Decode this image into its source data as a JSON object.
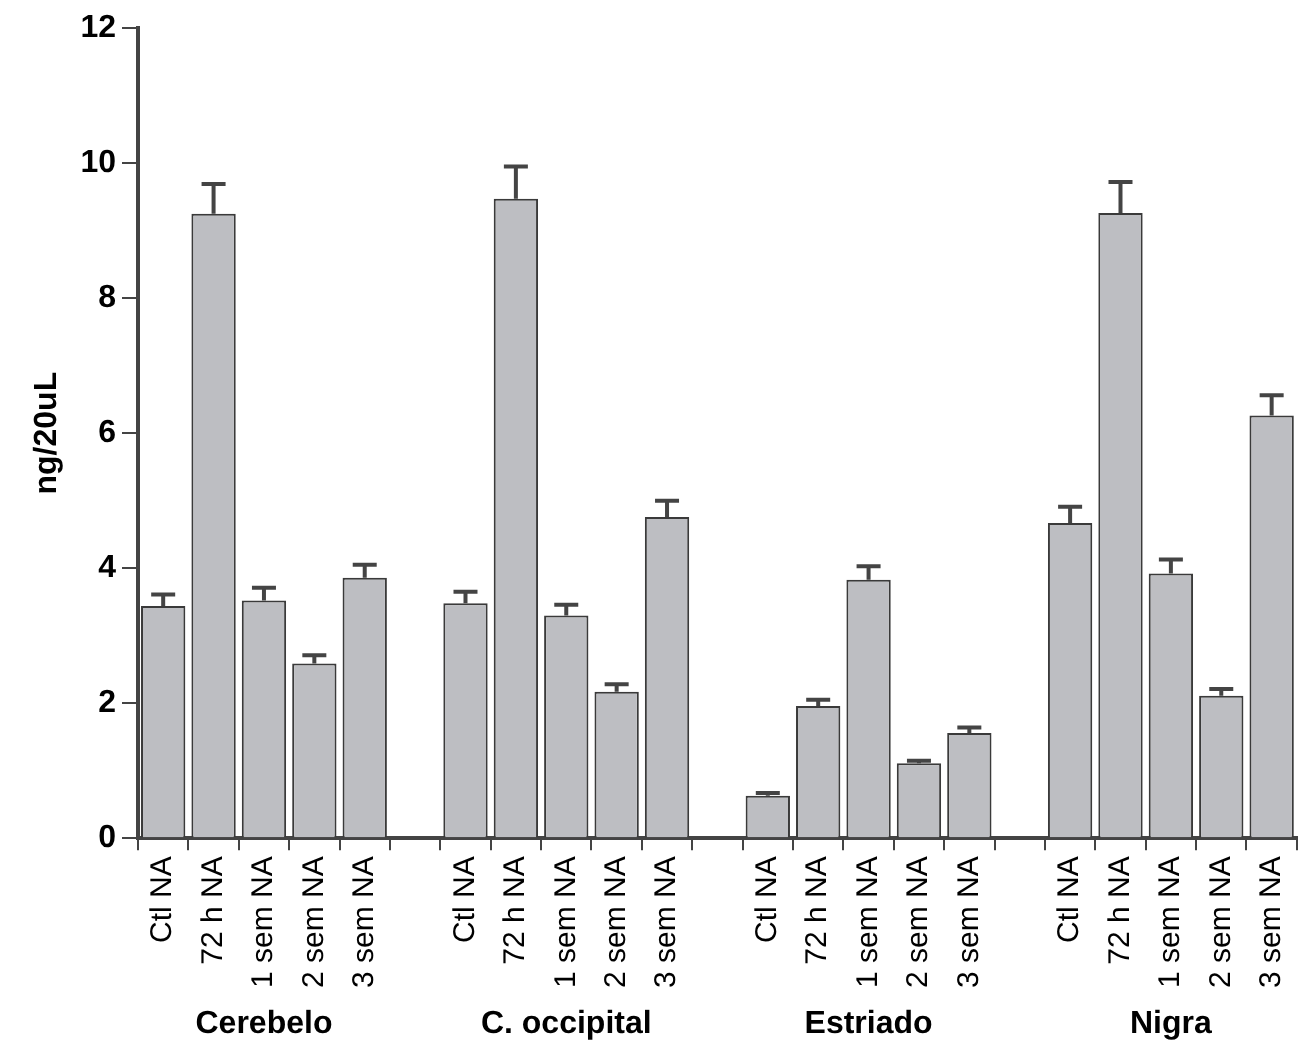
{
  "chart_data": {
    "type": "bar",
    "ylabel": "ng/20uL",
    "categories": [
      "Ctl NA",
      "72 h NA",
      "1 sem NA",
      "2 sem NA",
      "3 sem NA",
      null,
      "Ctl NA",
      "72 h NA",
      "1 sem NA",
      "2 sem NA",
      "3 sem NA",
      null,
      "Ctl NA",
      "72 h NA",
      "1 sem NA",
      "2 sem NA",
      "3 sem NA",
      null,
      "Ctl NA",
      "72 h NA",
      "1 sem NA",
      "2 sem NA",
      "3 sem NA"
    ],
    "values": [
      3.44,
      9.25,
      3.52,
      2.59,
      3.86,
      null,
      3.48,
      9.47,
      3.3,
      2.17,
      4.76,
      null,
      0.63,
      1.96,
      3.83,
      1.11,
      1.56,
      null,
      4.67,
      9.26,
      3.92,
      2.11,
      6.26
    ],
    "errors": [
      [
        3.44,
        3.61
      ],
      [
        9.25,
        9.69
      ],
      [
        3.52,
        3.71
      ],
      [
        2.59,
        2.71
      ],
      [
        3.86,
        4.05
      ],
      null,
      [
        3.48,
        3.65
      ],
      [
        9.47,
        9.95
      ],
      [
        3.3,
        3.46
      ],
      [
        2.17,
        2.28
      ],
      [
        4.76,
        5.0
      ],
      null,
      [
        0.63,
        0.67
      ],
      [
        1.96,
        2.05
      ],
      [
        3.83,
        4.03
      ],
      [
        1.11,
        1.15
      ],
      [
        1.56,
        1.64
      ],
      null,
      [
        4.67,
        4.91
      ],
      [
        9.26,
        9.72
      ],
      [
        3.92,
        4.13
      ],
      [
        2.11,
        2.21
      ],
      [
        6.26,
        6.56
      ]
    ],
    "color": "#bdbec2",
    "annotations": [
      "Cerebelo",
      "C. occipital",
      "Estriado",
      "Nigra"
    ],
    "ylim": [
      0,
      12
    ],
    "yticks": [
      0,
      2,
      4,
      6,
      8,
      10,
      12
    ],
    "grid": false,
    "legend": false
  }
}
